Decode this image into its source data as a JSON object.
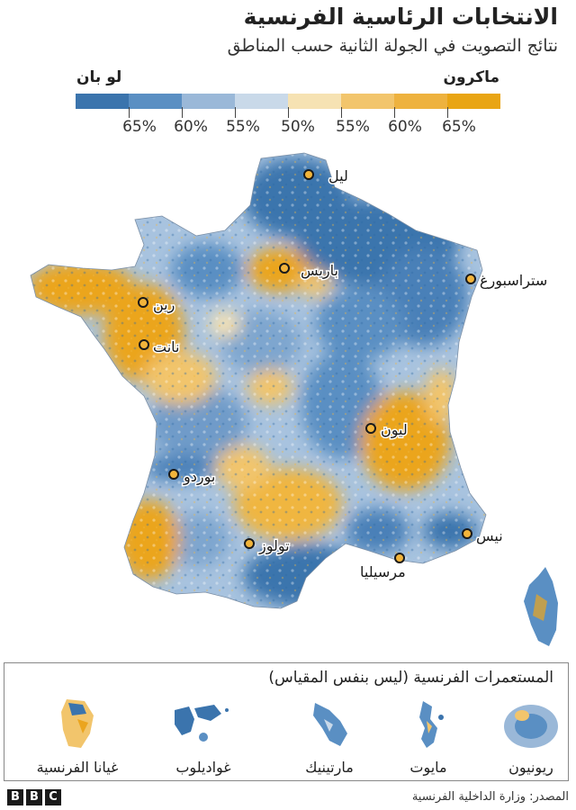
{
  "header": {
    "title": "الانتخابات الرئاسية الفرنسية",
    "subtitle": "نتائج التصويت في الجولة الثانية حسب المناطق"
  },
  "legend": {
    "macron_label": "ماكرون",
    "lepen_label": "لو بان",
    "scale_colors": [
      "#3b74ad",
      "#5a8fc3",
      "#9ab8d8",
      "#c9d9e9",
      "#f6e2b3",
      "#f2c56c",
      "#eeb23e",
      "#e9a514"
    ],
    "ticks": [
      "65%",
      "60%",
      "55%",
      "50%",
      "55%",
      "60%",
      "65%"
    ],
    "macron_color": "#eba51f",
    "lepen_color": "#3d74ad"
  },
  "map": {
    "cities": [
      {
        "name": "ليل"
      },
      {
        "name": "باريس"
      },
      {
        "name": "ستراسبورغ"
      },
      {
        "name": "رين"
      },
      {
        "name": "نانت"
      },
      {
        "name": "ليون"
      },
      {
        "name": "بوردو"
      },
      {
        "name": "تولوز"
      },
      {
        "name": "نيس"
      },
      {
        "name": "مرسيليا"
      }
    ]
  },
  "colonies": {
    "title": "المستعمرات الفرنسية (ليس بنفس المقياس)",
    "items": [
      {
        "name": "ريونيون"
      },
      {
        "name": "مايوت"
      },
      {
        "name": "مارتينيك"
      },
      {
        "name": "غواديلوب"
      },
      {
        "name": "غيانا الفرنسية"
      }
    ]
  },
  "footer": {
    "logo": [
      "B",
      "B",
      "C"
    ],
    "source": "المصدر: وزارة الداخلية الفرنسية"
  }
}
